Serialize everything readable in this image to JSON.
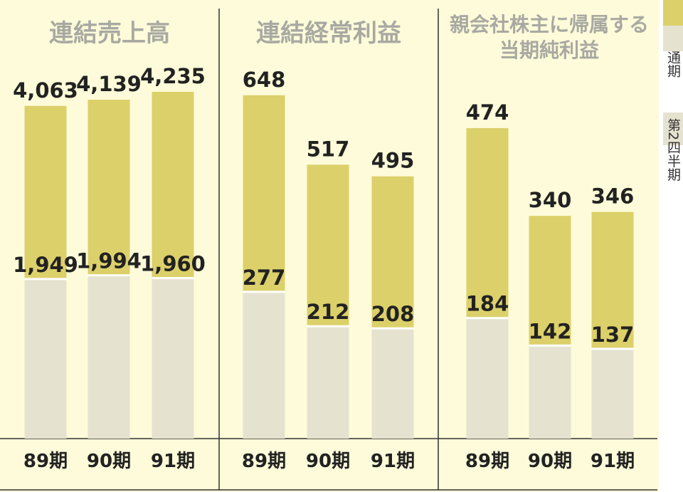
{
  "colors": {
    "background": "#fdfbd9",
    "full_year": "#dcd06a",
    "second_quarter": "#e5e2d0",
    "title": "#a9a9a2",
    "divider": "#333333",
    "legend_bg": "#ffffff"
  },
  "legend": [
    {
      "label": "通期",
      "color": "#dcd06a"
    },
    {
      "label": "第2四半期",
      "color": "#e5e2d0"
    }
  ],
  "chart_data": [
    {
      "type": "bar",
      "title": [
        "連結売上高"
      ],
      "categories": [
        "89期",
        "90期",
        "91期"
      ],
      "series": [
        {
          "name": "通期",
          "values": [
            4063,
            4139,
            4235
          ],
          "labels": [
            "4,063",
            "4,139",
            "4,235"
          ]
        },
        {
          "name": "第2四半期",
          "values": [
            1949,
            1994,
            1960
          ],
          "labels": [
            "1,949",
            "1,994",
            "1,960"
          ]
        }
      ],
      "ylim": [
        0,
        4400
      ]
    },
    {
      "type": "bar",
      "title": [
        "連結経常利益"
      ],
      "categories": [
        "89期",
        "90期",
        "91期"
      ],
      "series": [
        {
          "name": "通期",
          "values": [
            648,
            517,
            495
          ],
          "labels": [
            "648",
            "517",
            "495"
          ]
        },
        {
          "name": "第2四半期",
          "values": [
            277,
            212,
            208
          ],
          "labels": [
            "277",
            "212",
            "208"
          ]
        }
      ],
      "ylim": [
        0,
        680
      ]
    },
    {
      "type": "bar",
      "title": [
        "親会社株主に帰属する",
        "当期純利益"
      ],
      "categories": [
        "89期",
        "90期",
        "91期"
      ],
      "series": [
        {
          "name": "通期",
          "values": [
            474,
            340,
            346
          ],
          "labels": [
            "474",
            "340",
            "346"
          ]
        },
        {
          "name": "第2四半期",
          "values": [
            184,
            142,
            137
          ],
          "labels": [
            "184",
            "142",
            "137"
          ]
        }
      ],
      "ylim": [
        0,
        550
      ]
    }
  ]
}
